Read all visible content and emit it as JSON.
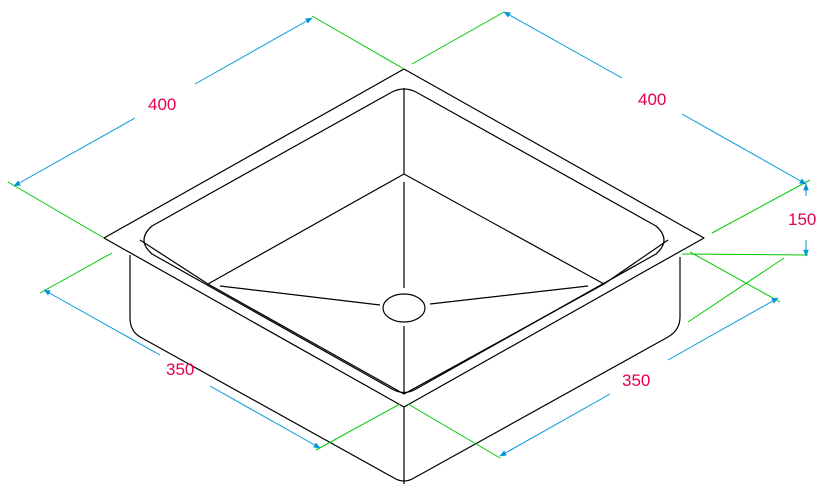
{
  "drawing": {
    "dimensions": {
      "top_left_width": "400",
      "top_right_depth": "400",
      "height": "150",
      "bottom_left_width": "350",
      "bottom_right_depth": "350"
    },
    "colors": {
      "outline": "#000000",
      "extension_lines": "#00c800",
      "dimension_lines": "#0096dc",
      "dimension_text": "#e6004c",
      "background": "#ffffff"
    }
  }
}
